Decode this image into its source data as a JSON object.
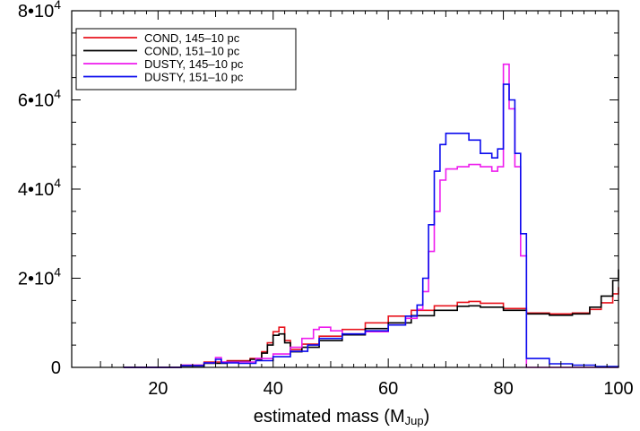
{
  "chart_data": {
    "type": "line",
    "style": "step histogram",
    "xlabel": "estimated mass (M",
    "xlabel_sub": "Jup",
    "xlabel_close": ")",
    "ylabel": "",
    "xlim": [
      5,
      100
    ],
    "ylim": [
      0,
      80000
    ],
    "xticks": [
      20,
      40,
      60,
      80,
      100
    ],
    "x_tick_labels": [
      "20",
      "40",
      "60",
      "80",
      "100"
    ],
    "yticks": [
      0,
      20000,
      40000,
      60000,
      80000
    ],
    "y_tick_labels": [
      {
        "base": "0",
        "exp": ""
      },
      {
        "base": "2•10",
        "exp": "4"
      },
      {
        "base": "4•10",
        "exp": "4"
      },
      {
        "base": "6•10",
        "exp": "4"
      },
      {
        "base": "8•10",
        "exp": "4"
      }
    ],
    "grid": false,
    "legend_position": "top-left",
    "series": [
      {
        "name": "COND, 145–10 pc",
        "color": "#e8141e",
        "points": [
          [
            14,
            0
          ],
          [
            24,
            500
          ],
          [
            28,
            1200
          ],
          [
            32,
            1500
          ],
          [
            36,
            2000
          ],
          [
            38,
            3500
          ],
          [
            39,
            5500
          ],
          [
            40,
            8000
          ],
          [
            41,
            9000
          ],
          [
            42,
            6000
          ],
          [
            43,
            4000
          ],
          [
            45,
            5200
          ],
          [
            48,
            7000
          ],
          [
            52,
            8500
          ],
          [
            56,
            10000
          ],
          [
            60,
            11500
          ],
          [
            64,
            12800
          ],
          [
            68,
            13800
          ],
          [
            72,
            14600
          ],
          [
            74,
            14800
          ],
          [
            76,
            14400
          ],
          [
            80,
            13200
          ],
          [
            84,
            12200
          ],
          [
            88,
            12000
          ],
          [
            92,
            12200
          ],
          [
            95,
            13000
          ],
          [
            97,
            14500
          ],
          [
            99,
            16500
          ],
          [
            100,
            18000
          ]
        ]
      },
      {
        "name": "COND,  151–10 pc",
        "color": "#000000",
        "points": [
          [
            14,
            0
          ],
          [
            24,
            300
          ],
          [
            28,
            900
          ],
          [
            32,
            1300
          ],
          [
            36,
            1800
          ],
          [
            38,
            3200
          ],
          [
            39,
            5000
          ],
          [
            40,
            7200
          ],
          [
            41,
            7500
          ],
          [
            42,
            5500
          ],
          [
            43,
            3500
          ],
          [
            45,
            4500
          ],
          [
            48,
            6000
          ],
          [
            52,
            7300
          ],
          [
            56,
            8700
          ],
          [
            60,
            10000
          ],
          [
            64,
            11600
          ],
          [
            68,
            12800
          ],
          [
            72,
            13700
          ],
          [
            74,
            13800
          ],
          [
            76,
            13500
          ],
          [
            80,
            12800
          ],
          [
            84,
            12000
          ],
          [
            88,
            11700
          ],
          [
            92,
            12000
          ],
          [
            95,
            13500
          ],
          [
            97,
            16000
          ],
          [
            99,
            19500
          ],
          [
            100,
            22000
          ]
        ]
      },
      {
        "name": "DUSTY, 145–10 pc",
        "color": "#ee1cee",
        "points": [
          [
            14,
            0
          ],
          [
            24,
            500
          ],
          [
            28,
            1000
          ],
          [
            30,
            2200
          ],
          [
            31,
            1200
          ],
          [
            34,
            1200
          ],
          [
            37,
            2000
          ],
          [
            40,
            3000
          ],
          [
            43,
            4500
          ],
          [
            45,
            6500
          ],
          [
            47,
            8500
          ],
          [
            48,
            9000
          ],
          [
            50,
            8200
          ],
          [
            52,
            7500
          ],
          [
            56,
            8000
          ],
          [
            60,
            9500
          ],
          [
            63,
            11000
          ],
          [
            65,
            13000
          ],
          [
            66,
            17000
          ],
          [
            67,
            26000
          ],
          [
            68,
            35000
          ],
          [
            69,
            42000
          ],
          [
            70,
            44500
          ],
          [
            72,
            45000
          ],
          [
            74,
            45500
          ],
          [
            76,
            45000
          ],
          [
            78,
            44000
          ],
          [
            79,
            45000
          ],
          [
            80,
            68000
          ],
          [
            81,
            58000
          ],
          [
            82,
            45000
          ],
          [
            83,
            25000
          ],
          [
            84,
            0
          ],
          [
            100,
            0
          ]
        ]
      },
      {
        "name": "DUSTY, 151–10 pc",
        "color": "#0a0aee",
        "points": [
          [
            14,
            0
          ],
          [
            24,
            400
          ],
          [
            28,
            1000
          ],
          [
            30,
            1800
          ],
          [
            31,
            1000
          ],
          [
            34,
            900
          ],
          [
            37,
            1500
          ],
          [
            40,
            2400
          ],
          [
            43,
            3600
          ],
          [
            46,
            5000
          ],
          [
            48,
            6500
          ],
          [
            52,
            7500
          ],
          [
            56,
            8200
          ],
          [
            60,
            9500
          ],
          [
            63,
            11500
          ],
          [
            65,
            14000
          ],
          [
            66,
            20000
          ],
          [
            67,
            32000
          ],
          [
            68,
            44000
          ],
          [
            69,
            50000
          ],
          [
            70,
            52500
          ],
          [
            72,
            52500
          ],
          [
            74,
            51000
          ],
          [
            76,
            48000
          ],
          [
            78,
            47000
          ],
          [
            79,
            49000
          ],
          [
            80,
            63500
          ],
          [
            81,
            60000
          ],
          [
            82,
            48000
          ],
          [
            83,
            30000
          ],
          [
            84,
            2000
          ],
          [
            88,
            800
          ],
          [
            92,
            500
          ],
          [
            96,
            200
          ],
          [
            100,
            100
          ]
        ]
      }
    ]
  }
}
